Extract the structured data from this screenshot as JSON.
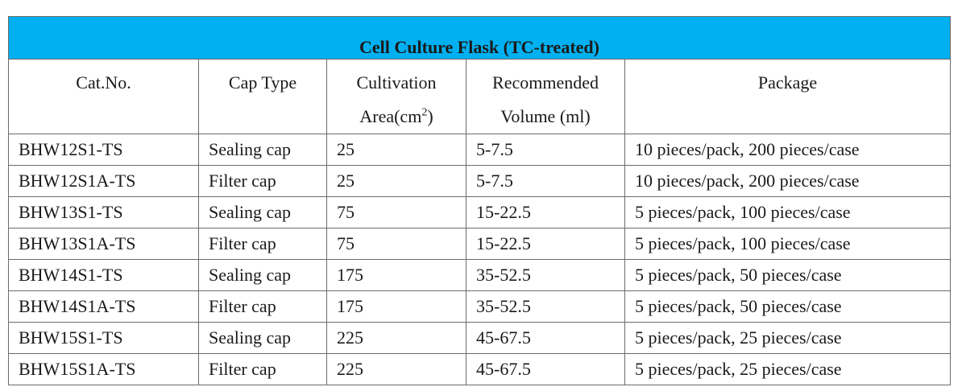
{
  "table": {
    "title": "Cell Culture Flask (TC-treated)",
    "headers": {
      "cat_no": "Cat.No.",
      "cap_type": "Cap Type",
      "area_line1": "Cultivation",
      "area_line2_prefix": "Area(cm",
      "area_line2_sup": "2",
      "area_line2_suffix": ")",
      "volume_line1": "Recommended",
      "volume_line2": "Volume (ml)",
      "package": "Package"
    },
    "rows": [
      {
        "cat_no": "BHW12S1-TS",
        "cap_type": "Sealing cap",
        "area": "25",
        "volume": "5-7.5",
        "package": "10 pieces/pack, 200 pieces/case"
      },
      {
        "cat_no": "BHW12S1A-TS",
        "cap_type": "Filter cap",
        "area": "25",
        "volume": "5-7.5",
        "package": "10 pieces/pack, 200 pieces/case"
      },
      {
        "cat_no": "BHW13S1-TS",
        "cap_type": "Sealing cap",
        "area": "75",
        "volume": "15-22.5",
        "package": "5 pieces/pack, 100 pieces/case"
      },
      {
        "cat_no": "BHW13S1A-TS",
        "cap_type": "Filter cap",
        "area": "75",
        "volume": "15-22.5",
        "package": "5 pieces/pack, 100 pieces/case"
      },
      {
        "cat_no": "BHW14S1-TS",
        "cap_type": "Sealing cap",
        "area": "175",
        "volume": "35-52.5",
        "package": "5 pieces/pack, 50 pieces/case"
      },
      {
        "cat_no": "BHW14S1A-TS",
        "cap_type": "Filter cap",
        "area": "175",
        "volume": "35-52.5",
        "package": "5 pieces/pack, 50 pieces/case"
      },
      {
        "cat_no": "BHW15S1-TS",
        "cap_type": "Sealing cap",
        "area": "225",
        "volume": "45-67.5",
        "package": "5 pieces/pack, 25 pieces/case"
      },
      {
        "cat_no": "BHW15S1A-TS",
        "cap_type": "Filter cap",
        "area": "225",
        "volume": "45-67.5",
        "package": "5 pieces/pack, 25 pieces/case"
      }
    ]
  },
  "colors": {
    "title_background": "#00b0f0",
    "border": "#6b6b6b",
    "text": "#1a1a1a"
  }
}
